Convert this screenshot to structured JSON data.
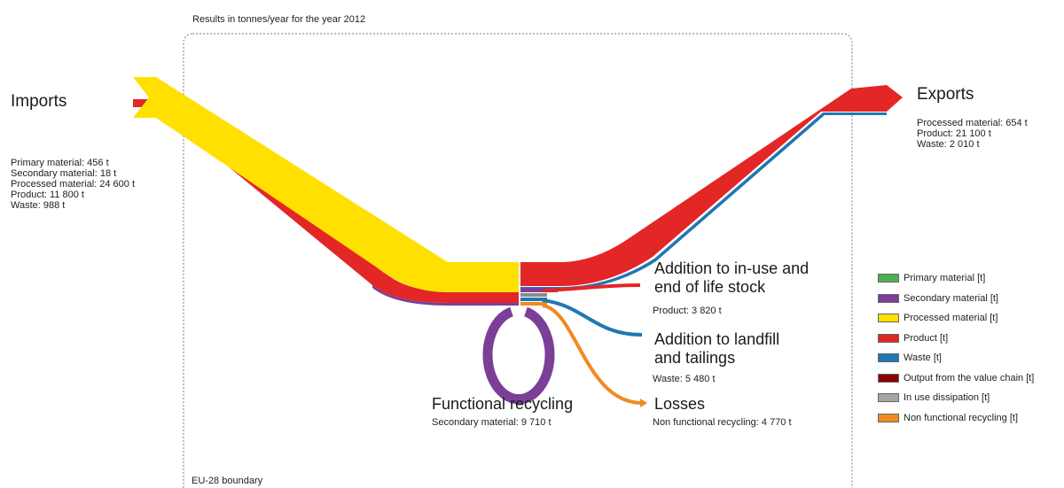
{
  "caption": "Results in tonnes/year for the year 2012",
  "boundary_label": "EU-28 boundary",
  "imports": {
    "title": "Imports",
    "lines": [
      "Primary material: 456 t",
      "Secondary material: 18 t",
      "Processed material: 24 600 t",
      "Product: 11 800 t",
      "Waste: 988 t"
    ]
  },
  "exports": {
    "title": "Exports",
    "lines": [
      "Processed material: 654 t",
      "Product: 21 100 t",
      "Waste: 2 010 t"
    ]
  },
  "stock": {
    "title_line1": "Addition to in-use and",
    "title_line2": "end of life stock",
    "value": "Product: 3 820 t"
  },
  "landfill": {
    "title_line1": "Addition to landfill",
    "title_line2": "and tailings",
    "value": "Waste: 5 480 t"
  },
  "losses": {
    "title": "Losses",
    "value": "Non functional recycling: 4 770 t"
  },
  "recycling": {
    "title": "Functional recycling",
    "value": "Secondary material: 9 710 t"
  },
  "legend": [
    {
      "label": "Primary material [t]",
      "color": "#4caf50"
    },
    {
      "label": "Secondary material [t]",
      "color": "#7b3f98"
    },
    {
      "label": "Processed material [t]",
      "color": "#ffe000"
    },
    {
      "label": "Product [t]",
      "color": "#e32626"
    },
    {
      "label": "Waste [t]",
      "color": "#1f77b4"
    },
    {
      "label": "Output from the value chain [t]",
      "color": "#8b0000"
    },
    {
      "label": "In use dissipation [t]",
      "color": "#a6a6a6"
    },
    {
      "label": "Non functional recycling [t]",
      "color": "#f28a1e"
    }
  ]
}
